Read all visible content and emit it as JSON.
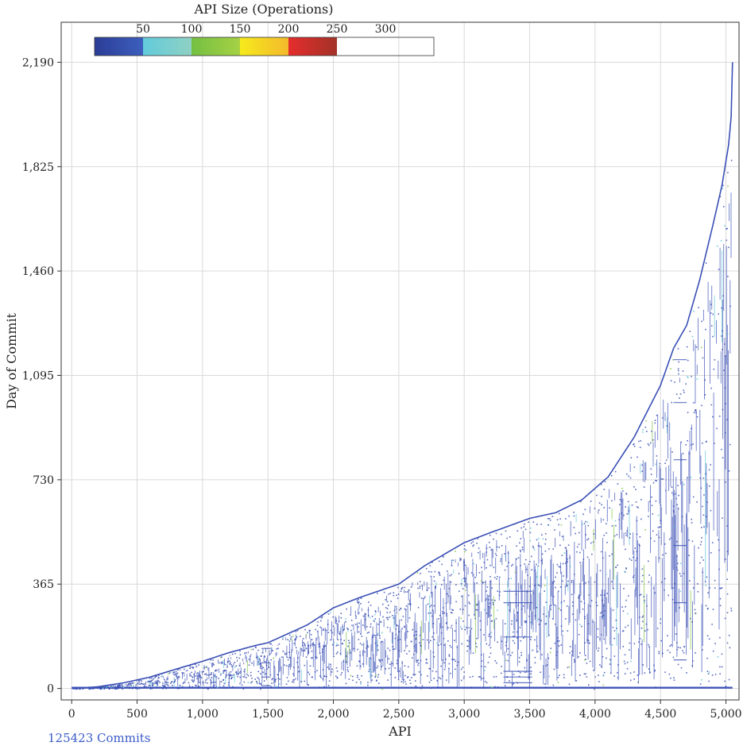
{
  "chart_data": {
    "type": "scatter",
    "title": "",
    "xlabel": "API",
    "ylabel": "Day of Commit",
    "xlim": [
      -80,
      5100
    ],
    "ylim": [
      -40,
      2330
    ],
    "x_ticks": [
      0,
      500,
      1000,
      1500,
      2000,
      2500,
      3000,
      3500,
      4000,
      4500,
      5000
    ],
    "x_tick_labels": [
      "0",
      "500",
      "1,000",
      "1,500",
      "2,000",
      "2,500",
      "3,000",
      "3,500",
      "4,000",
      "4,500",
      "5,000"
    ],
    "y_ticks": [
      0,
      365,
      730,
      1095,
      1460,
      1825,
      2190
    ],
    "y_tick_labels": [
      "0",
      "365",
      "730",
      "1,095",
      "1,460",
      "1,825",
      "2,190"
    ],
    "grid": true,
    "colorbar": {
      "title": "API Size (Operations)",
      "ticks": [
        50,
        100,
        150,
        200,
        250,
        300
      ],
      "tick_labels": [
        "50",
        "100",
        "150",
        "200",
        "250",
        "300"
      ],
      "range": [
        0,
        350
      ],
      "segments": [
        {
          "from": 0,
          "to": 50,
          "color_start": "#2b3d96",
          "color_end": "#3d5fbd"
        },
        {
          "from": 50,
          "to": 100,
          "color_start": "#62cbdb",
          "color_end": "#8fd1c4"
        },
        {
          "from": 100,
          "to": 150,
          "color_start": "#74c043",
          "color_end": "#a6d144"
        },
        {
          "from": 150,
          "to": 200,
          "color_start": "#f6ea1c",
          "color_end": "#f3b92c"
        },
        {
          "from": 200,
          "to": 250,
          "color_start": "#e52d2d",
          "color_end": "#a33227"
        }
      ],
      "placement": "top-left"
    },
    "series": [
      {
        "values": [
          {
            "x": 0,
            "y": 0
          },
          {
            "x": 200,
            "y": 6
          },
          {
            "x": 400,
            "y": 20
          },
          {
            "x": 600,
            "y": 40
          },
          {
            "x": 800,
            "y": 68
          },
          {
            "x": 1000,
            "y": 95
          },
          {
            "x": 1200,
            "y": 125
          },
          {
            "x": 1400,
            "y": 150
          },
          {
            "x": 1500,
            "y": 160
          },
          {
            "x": 1800,
            "y": 222
          },
          {
            "x": 2000,
            "y": 282
          },
          {
            "x": 2200,
            "y": 318
          },
          {
            "x": 2500,
            "y": 365
          },
          {
            "x": 2700,
            "y": 430
          },
          {
            "x": 3000,
            "y": 510
          },
          {
            "x": 3200,
            "y": 545
          },
          {
            "x": 3500,
            "y": 595
          },
          {
            "x": 3700,
            "y": 615
          },
          {
            "x": 3900,
            "y": 660
          },
          {
            "x": 4100,
            "y": 740
          },
          {
            "x": 4300,
            "y": 880
          },
          {
            "x": 4500,
            "y": 1060
          },
          {
            "x": 4600,
            "y": 1190
          },
          {
            "x": 4700,
            "y": 1270
          },
          {
            "x": 4800,
            "y": 1430
          },
          {
            "x": 4900,
            "y": 1620
          },
          {
            "x": 4970,
            "y": 1760
          },
          {
            "x": 5020,
            "y": 1900
          },
          {
            "x": 5040,
            "y": 2000
          },
          {
            "x": 5050,
            "y": 2190
          }
        ]
      }
    ],
    "annotations": [
      "125423 Commits"
    ]
  },
  "colors": {
    "dense_blue": "#3a4fb5",
    "cyan": "#5ec3d6",
    "green": "#7cc242",
    "grid": "#d9d9d9",
    "frame": "#333333"
  }
}
